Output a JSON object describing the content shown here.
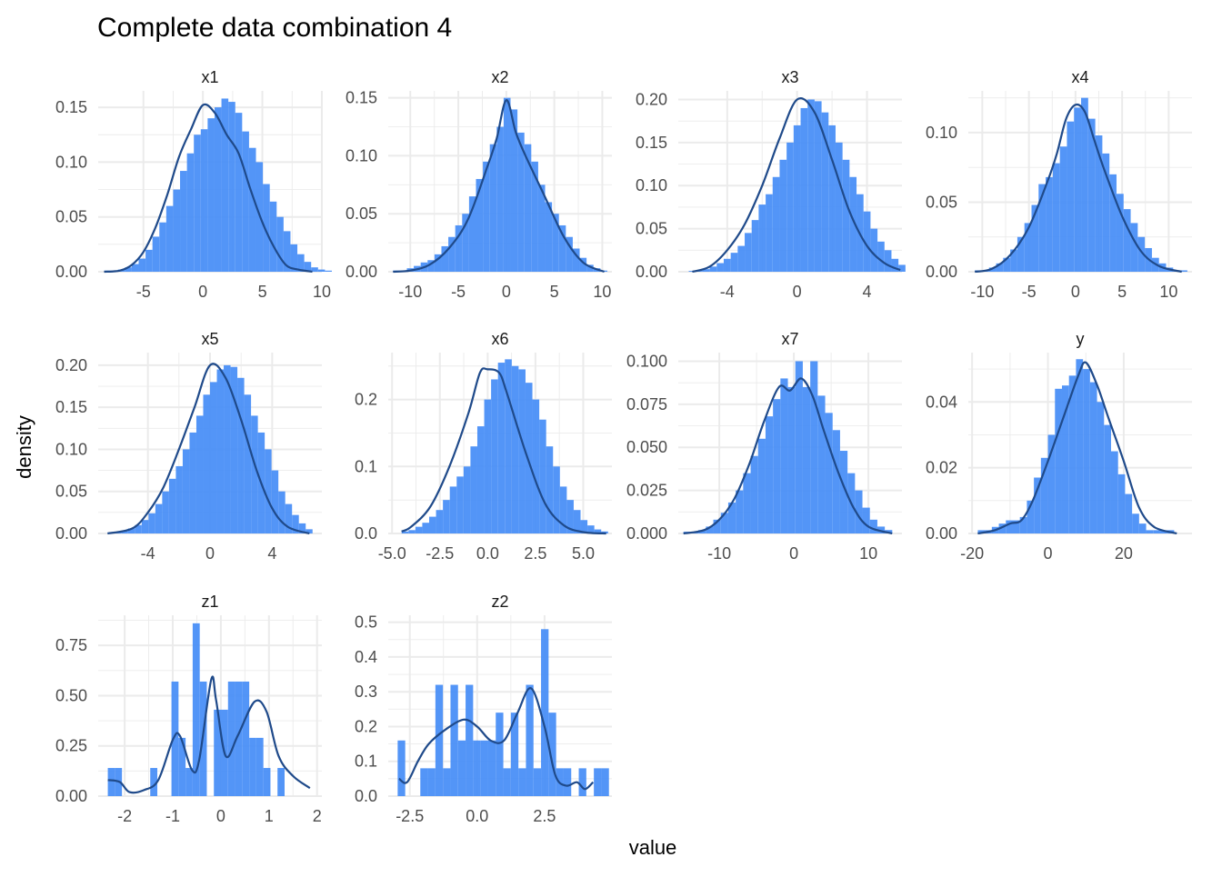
{
  "title": "Complete data combination 4",
  "xlabel": "value",
  "ylabel": "density",
  "colors": {
    "bar": "#4a8ff7",
    "density": "#1f4a8a",
    "grid": "#ebebeb",
    "tick": "#4d4d4d"
  },
  "chart_data": {
    "type": "histogram-facets",
    "title": "Complete data combination 4",
    "xlabel": "value",
    "ylabel": "density",
    "grid": true,
    "panels": [
      {
        "name": "x1",
        "xlim": [
          -8.8,
          10
        ],
        "ylim": [
          0,
          0.165
        ],
        "xticks": [
          -5,
          0,
          5,
          10
        ],
        "xtick_labels": [
          "-5",
          "0",
          "5",
          "10"
        ],
        "yticks": [
          0,
          0.05,
          0.1,
          0.15
        ],
        "ytick_labels": [
          "0.00",
          "0.05",
          "0.10",
          "0.15"
        ],
        "bars": {
          "start": -8.3,
          "width": 0.58,
          "values": [
            0.001,
            0.001,
            0.002,
            0.004,
            0.007,
            0.012,
            0.02,
            0.032,
            0.045,
            0.06,
            0.075,
            0.092,
            0.108,
            0.125,
            0.13,
            0.14,
            0.15,
            0.158,
            0.155,
            0.145,
            0.128,
            0.113,
            0.1,
            0.08,
            0.064,
            0.05,
            0.037,
            0.025,
            0.016,
            0.009,
            0.004,
            0.002,
            0.001
          ]
        },
        "density": {
          "x": [
            -8.3,
            -7,
            -6,
            -5,
            -4,
            -3,
            -2,
            -1,
            0,
            1,
            2,
            3,
            4,
            5,
            6,
            7,
            8,
            9.2
          ],
          "y": [
            0,
            0.001,
            0.006,
            0.018,
            0.04,
            0.07,
            0.105,
            0.13,
            0.152,
            0.145,
            0.125,
            0.108,
            0.075,
            0.045,
            0.022,
            0.006,
            0.002,
            0
          ]
        }
      },
      {
        "name": "x2",
        "xlim": [
          -12.3,
          11
        ],
        "ylim": [
          0,
          0.156
        ],
        "xticks": [
          -10,
          -5,
          0,
          5,
          10
        ],
        "xtick_labels": [
          "-10",
          "-5",
          "0",
          "5",
          "10"
        ],
        "yticks": [
          0,
          0.05,
          0.1,
          0.15
        ],
        "ytick_labels": [
          "0.00",
          "0.05",
          "0.10",
          "0.15"
        ],
        "bars": {
          "start": -11.8,
          "width": 0.72,
          "values": [
            0.001,
            0.001,
            0.003,
            0.005,
            0.008,
            0.01,
            0.015,
            0.022,
            0.03,
            0.04,
            0.05,
            0.065,
            0.08,
            0.095,
            0.11,
            0.125,
            0.15,
            0.14,
            0.12,
            0.11,
            0.095,
            0.075,
            0.06,
            0.05,
            0.04,
            0.03,
            0.02,
            0.012,
            0.006,
            0.003,
            0.001
          ]
        },
        "density": {
          "x": [
            -11.8,
            -10,
            -8,
            -6,
            -4,
            -2,
            -1,
            0,
            1,
            2,
            4,
            6,
            8,
            10.2
          ],
          "y": [
            0,
            0.001,
            0.006,
            0.02,
            0.045,
            0.09,
            0.115,
            0.148,
            0.12,
            0.1,
            0.065,
            0.03,
            0.008,
            0
          ]
        }
      },
      {
        "name": "x3",
        "xlim": [
          -6.8,
          6
        ],
        "ylim": [
          0,
          0.21
        ],
        "xticks": [
          -4,
          0,
          4
        ],
        "xtick_labels": [
          "-4",
          "0",
          "4"
        ],
        "yticks": [
          0,
          0.05,
          0.1,
          0.15,
          0.2
        ],
        "ytick_labels": [
          "0.00",
          "0.05",
          "0.10",
          "0.15",
          "0.20"
        ],
        "bars": {
          "start": -6.2,
          "width": 0.4,
          "values": [
            0.001,
            0.002,
            0.003,
            0.006,
            0.01,
            0.015,
            0.022,
            0.03,
            0.045,
            0.06,
            0.078,
            0.09,
            0.11,
            0.13,
            0.15,
            0.17,
            0.19,
            0.2,
            0.198,
            0.185,
            0.17,
            0.15,
            0.13,
            0.11,
            0.09,
            0.07,
            0.05,
            0.035,
            0.025,
            0.015,
            0.008
          ]
        },
        "density": {
          "x": [
            -6,
            -5,
            -4,
            -3,
            -2,
            -1,
            0,
            1,
            2,
            3,
            4,
            5,
            5.9
          ],
          "y": [
            0,
            0.006,
            0.025,
            0.055,
            0.1,
            0.155,
            0.2,
            0.185,
            0.13,
            0.07,
            0.03,
            0.01,
            0.002
          ]
        }
      },
      {
        "name": "x4",
        "xlim": [
          -11.5,
          12.5
        ],
        "ylim": [
          0,
          0.13
        ],
        "xticks": [
          -10,
          -5,
          0,
          5,
          10
        ],
        "xtick_labels": [
          "-10",
          "-5",
          "0",
          "5",
          "10"
        ],
        "yticks": [
          0,
          0.05,
          0.1
        ],
        "ytick_labels": [
          "0.00",
          "0.05",
          "0.10"
        ],
        "bars": {
          "start": -10.8,
          "width": 0.76,
          "values": [
            0.001,
            0.001,
            0.003,
            0.006,
            0.01,
            0.016,
            0.025,
            0.035,
            0.048,
            0.063,
            0.068,
            0.078,
            0.09,
            0.108,
            0.118,
            0.125,
            0.11,
            0.098,
            0.085,
            0.07,
            0.056,
            0.045,
            0.035,
            0.025,
            0.017,
            0.01,
            0.006,
            0.003,
            0.001,
            0.001
          ]
        },
        "density": {
          "x": [
            -10.8,
            -9,
            -7,
            -5,
            -3,
            -2,
            -1,
            0,
            1,
            2,
            3,
            5,
            7,
            9,
            11.4
          ],
          "y": [
            0,
            0.002,
            0.012,
            0.032,
            0.065,
            0.085,
            0.11,
            0.12,
            0.115,
            0.095,
            0.075,
            0.04,
            0.015,
            0.004,
            0
          ]
        }
      },
      {
        "name": "x5",
        "xlim": [
          -7.2,
          7.2
        ],
        "ylim": [
          0,
          0.215
        ],
        "xticks": [
          -4,
          0,
          4
        ],
        "xtick_labels": [
          "-4",
          "0",
          "4"
        ],
        "yticks": [
          0,
          0.05,
          0.1,
          0.15,
          0.2
        ],
        "ytick_labels": [
          "0.00",
          "0.05",
          "0.10",
          "0.15",
          "0.20"
        ],
        "bars": {
          "start": -6.6,
          "width": 0.44,
          "values": [
            0.001,
            0.002,
            0.003,
            0.006,
            0.01,
            0.016,
            0.024,
            0.035,
            0.05,
            0.065,
            0.08,
            0.1,
            0.12,
            0.14,
            0.165,
            0.18,
            0.195,
            0.2,
            0.198,
            0.185,
            0.165,
            0.14,
            0.12,
            0.1,
            0.075,
            0.05,
            0.035,
            0.022,
            0.012,
            0.005
          ]
        },
        "density": {
          "x": [
            -6.6,
            -5,
            -4,
            -3,
            -2,
            -1,
            0,
            1,
            2,
            3,
            4,
            5,
            6.4
          ],
          "y": [
            0,
            0.006,
            0.025,
            0.055,
            0.1,
            0.15,
            0.2,
            0.185,
            0.135,
            0.075,
            0.03,
            0.008,
            0
          ]
        }
      },
      {
        "name": "x6",
        "xlim": [
          -5.2,
          6.5
        ],
        "ylim": [
          0,
          0.27
        ],
        "xticks": [
          -5,
          -2.5,
          0,
          2.5,
          5
        ],
        "xtick_labels": [
          "-5.0",
          "-2.5",
          "0.0",
          "2.5",
          "5.0"
        ],
        "yticks": [
          0,
          0.1,
          0.2
        ],
        "ytick_labels": [
          "0.0",
          "0.1",
          "0.2"
        ],
        "bars": {
          "start": -4.5,
          "width": 0.36,
          "values": [
            0.003,
            0.005,
            0.01,
            0.016,
            0.025,
            0.035,
            0.05,
            0.07,
            0.085,
            0.1,
            0.13,
            0.16,
            0.2,
            0.23,
            0.255,
            0.26,
            0.25,
            0.245,
            0.225,
            0.2,
            0.17,
            0.13,
            0.1,
            0.07,
            0.05,
            0.035,
            0.02,
            0.012,
            0.006,
            0.003
          ]
        },
        "density": {
          "x": [
            -4.5,
            -4,
            -3,
            -2,
            -1,
            -0.4,
            0,
            0.6,
            1,
            2,
            3,
            4,
            5,
            6.2
          ],
          "y": [
            0.003,
            0.01,
            0.04,
            0.1,
            0.18,
            0.24,
            0.245,
            0.24,
            0.21,
            0.12,
            0.045,
            0.012,
            0.002,
            0
          ]
        }
      },
      {
        "name": "x7",
        "xlim": [
          -15.5,
          14.5
        ],
        "ylim": [
          0,
          0.105
        ],
        "xticks": [
          -10,
          0,
          10
        ],
        "xtick_labels": [
          "-10",
          "0",
          "10"
        ],
        "yticks": [
          0,
          0.025,
          0.05,
          0.075,
          0.1
        ],
        "ytick_labels": [
          "0.000",
          "0.025",
          "0.050",
          "0.075",
          "0.100"
        ],
        "bars": {
          "start": -14.8,
          "width": 1.0,
          "values": [
            0.001,
            0.001,
            0.002,
            0.004,
            0.008,
            0.012,
            0.018,
            0.025,
            0.035,
            0.045,
            0.055,
            0.068,
            0.078,
            0.09,
            0.085,
            0.1,
            0.085,
            0.1,
            0.08,
            0.07,
            0.06,
            0.048,
            0.035,
            0.025,
            0.015,
            0.008,
            0.004,
            0.002
          ]
        },
        "density": {
          "x": [
            -14.8,
            -12,
            -10,
            -8,
            -6,
            -4,
            -2,
            -0.5,
            1,
            2.5,
            4,
            6,
            8,
            10,
            13.2
          ],
          "y": [
            0,
            0.002,
            0.008,
            0.02,
            0.04,
            0.065,
            0.085,
            0.083,
            0.09,
            0.08,
            0.06,
            0.035,
            0.015,
            0.004,
            0
          ]
        }
      },
      {
        "name": "y",
        "xlim": [
          -21,
          38
        ],
        "ylim": [
          0,
          0.055
        ],
        "xticks": [
          -20,
          0,
          20
        ],
        "xtick_labels": [
          "-20",
          "0",
          "20"
        ],
        "yticks": [
          0,
          0.02,
          0.04
        ],
        "ytick_labels": [
          "0.00",
          "0.02",
          "0.04"
        ],
        "bars": {
          "start": -18.5,
          "width": 1.85,
          "values": [
            0.001,
            0.001,
            0.002,
            0.003,
            0.004,
            0.004,
            0.005,
            0.01,
            0.017,
            0.023,
            0.03,
            0.044,
            0.045,
            0.048,
            0.053,
            0.05,
            0.046,
            0.04,
            0.033,
            0.025,
            0.018,
            0.012,
            0.006,
            0.003,
            0.001,
            0.001,
            0.001,
            0.001
          ]
        },
        "density": {
          "x": [
            -18.5,
            -14,
            -10,
            -7,
            -4,
            0,
            4,
            8,
            10,
            13,
            16,
            20,
            24,
            28,
            34
          ],
          "y": [
            0,
            0.001,
            0.003,
            0.004,
            0.01,
            0.022,
            0.035,
            0.048,
            0.052,
            0.045,
            0.035,
            0.022,
            0.008,
            0.002,
            0
          ]
        }
      },
      {
        "name": "z1",
        "xlim": [
          -2.55,
          2.1
        ],
        "ylim": [
          0,
          0.9
        ],
        "xticks": [
          -2,
          -1,
          0,
          1,
          2
        ],
        "xtick_labels": [
          "-2",
          "-1",
          "0",
          "1",
          "2"
        ],
        "yticks": [
          0,
          0.25,
          0.5,
          0.75
        ],
        "ytick_labels": [
          "0.00",
          "0.25",
          "0.50",
          "0.75"
        ],
        "bars": {
          "start": -2.35,
          "width": 0.147,
          "values": [
            0.14,
            0.14,
            0,
            0,
            0,
            0,
            0.14,
            0,
            0,
            0.57,
            0.29,
            0.14,
            0.86,
            0.57,
            0,
            0.43,
            0.43,
            0.57,
            0.57,
            0.57,
            0.29,
            0.29,
            0.14,
            0,
            0.14
          ]
        },
        "density": {
          "x": [
            -2.35,
            -2.1,
            -1.9,
            -1.6,
            -1.3,
            -1.0,
            -0.85,
            -0.6,
            -0.45,
            -0.2,
            -0.1,
            0.1,
            0.35,
            0.7,
            0.95,
            1.2,
            1.5,
            1.85
          ],
          "y": [
            0.08,
            0.07,
            0.02,
            0.03,
            0.08,
            0.28,
            0.3,
            0.13,
            0.18,
            0.58,
            0.48,
            0.2,
            0.3,
            0.47,
            0.42,
            0.2,
            0.1,
            0.04
          ]
        }
      },
      {
        "name": "z2",
        "xlim": [
          -3.3,
          5.0
        ],
        "ylim": [
          0,
          0.52
        ],
        "xticks": [
          -2.5,
          0,
          2.5
        ],
        "xtick_labels": [
          "-2.5",
          "0.0",
          "2.5"
        ],
        "yticks": [
          0,
          0.1,
          0.2,
          0.3,
          0.4,
          0.5
        ],
        "ytick_labels": [
          "0.0",
          "0.1",
          "0.2",
          "0.3",
          "0.4",
          "0.5"
        ],
        "bars": {
          "start": -2.95,
          "width": 0.28,
          "values": [
            0.16,
            0,
            0,
            0.08,
            0.08,
            0.32,
            0.08,
            0.32,
            0.16,
            0.32,
            0.16,
            0.16,
            0.16,
            0.24,
            0.08,
            0.24,
            0.08,
            0.32,
            0.08,
            0.48,
            0.24,
            0.08,
            0.08,
            0,
            0.08,
            0,
            0.08,
            0.08
          ]
        },
        "density": {
          "x": [
            -2.9,
            -2.6,
            -2.2,
            -1.8,
            -1.2,
            -0.5,
            0,
            0.5,
            1.0,
            1.5,
            2.0,
            2.5,
            2.9,
            3.3,
            3.7,
            4.0,
            4.3
          ],
          "y": [
            0.05,
            0.04,
            0.1,
            0.15,
            0.19,
            0.22,
            0.2,
            0.16,
            0.16,
            0.24,
            0.31,
            0.2,
            0.06,
            0.03,
            0.04,
            0.02,
            0.04
          ]
        }
      }
    ]
  }
}
